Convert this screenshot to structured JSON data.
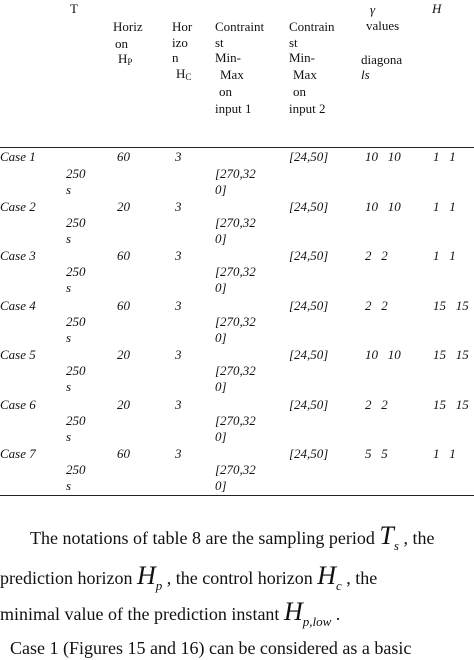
{
  "header": {
    "t_label": "T",
    "hp_lines": [
      "Horiz",
      "on"
    ],
    "hp_symbol": "H",
    "hp_sub": "P",
    "hc_lines": [
      "Hor",
      "izo",
      "n"
    ],
    "hc_symbol": "H",
    "hc_sub": "C",
    "c1_lines": [
      "Contraint",
      "st",
      " Min-",
      "Max",
      "  on",
      "input 1"
    ],
    "c2_lines": [
      "Contrain",
      "st",
      " Min-",
      "Max",
      "  on",
      "input 2"
    ],
    "gamma_lines": [
      "γ",
      "values"
    ],
    "diag_text": "diagona",
    "diag_suffix": "ls",
    "h_label": "H"
  },
  "rows": [
    {
      "case": "Case 1",
      "ts1": "250",
      "ts2": "s",
      "hp": "60",
      "hc": "3",
      "c1a": "[270,32",
      "c1b": "0]",
      "c2": "[24,50]",
      "gamma": "10   10",
      "h": "1   1"
    },
    {
      "case": "Case 2",
      "ts1": "250",
      "ts2": "s",
      "hp": "20",
      "hc": "3",
      "c1a": "[270,32",
      "c1b": "0]",
      "c2": "[24,50]",
      "gamma": "10   10",
      "h": "1   1"
    },
    {
      "case": "Case 3",
      "ts1": "250",
      "ts2": "s",
      "hp": "60",
      "hc": "3",
      "c1a": "[270,32",
      "c1b": "0]",
      "c2": "[24,50]",
      "gamma": "2   2",
      "h": "1   1"
    },
    {
      "case": "Case 4",
      "ts1": "250",
      "ts2": "s",
      "hp": "60",
      "hc": "3",
      "c1a": "[270,32",
      "c1b": "0]",
      "c2": "[24,50]",
      "gamma": "2   2",
      "h": "15   15"
    },
    {
      "case": "Case 5",
      "ts1": "250",
      "ts2": "s",
      "hp": "20",
      "hc": "3",
      "c1a": "[270,32",
      "c1b": "0]",
      "c2": "[24,50]",
      "gamma": "10   10",
      "h": "15   15"
    },
    {
      "case": "Case 6",
      "ts1": "250",
      "ts2": "s",
      "hp": "20",
      "hc": "3",
      "c1a": "[270,32",
      "c1b": "0]",
      "c2": "[24,50]",
      "gamma": "2   2",
      "h": "15   15"
    },
    {
      "case": "Case 7",
      "ts1": "250",
      "ts2": "s",
      "hp": "60",
      "hc": "3",
      "c1a": "[270,32",
      "c1b": "0]",
      "c2": "[24,50]",
      "gamma": "5   5",
      "h": "1   1"
    }
  ],
  "paragraph": {
    "l1_a": "The notations of table 8 are the sampling period ",
    "l1_T": "T",
    "l1_Ts": "s",
    "l1_b": " , the",
    "l2_a": "prediction horizon ",
    "l2_H": "H",
    "l2_Hs": "p",
    "l2_b": " , the control horizon ",
    "l2_H2": "H",
    "l2_H2s": "c",
    "l2_c": " , the",
    "l3_a": "minimal value of the prediction instant ",
    "l3_H": "H",
    "l3_Hs": "p,low",
    "l3_b": " .",
    "l4": "Case 1 (Figures 15 and 16) can be considered as a basic"
  }
}
